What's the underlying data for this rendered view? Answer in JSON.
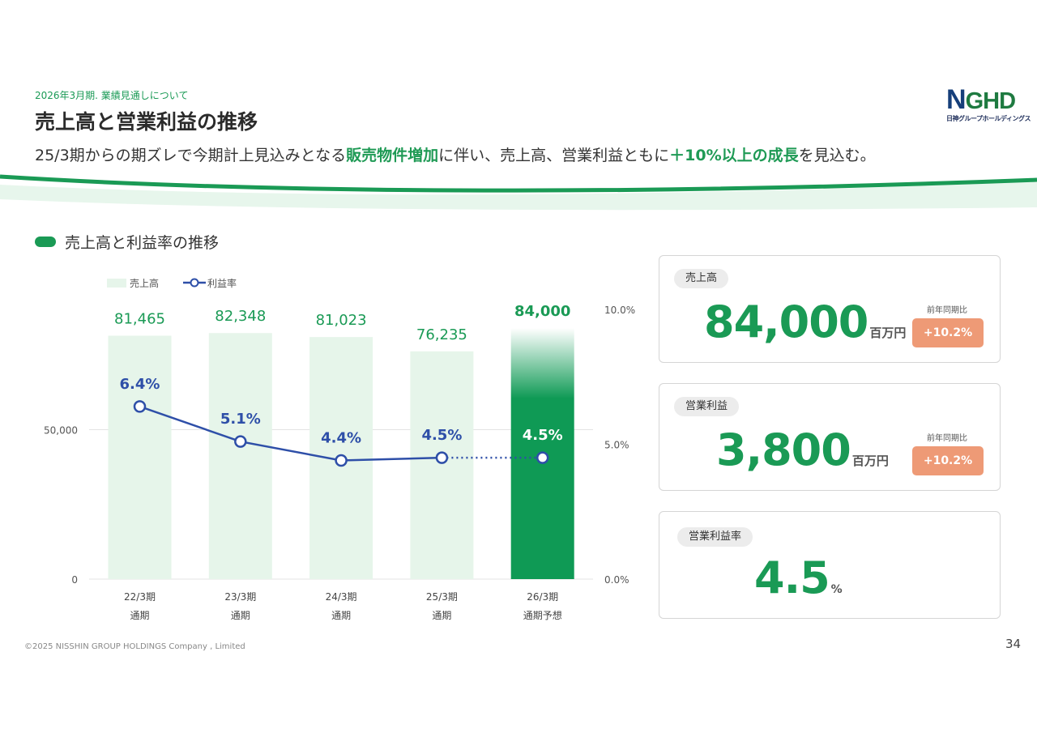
{
  "header": {
    "breadcrumb": "2026年3月期. 業績見通しについて",
    "title": "売上高と営業利益の推移",
    "subtitle_parts": [
      {
        "text": "25/3期からの期ズレで今期計上見込みとなる",
        "highlight": false
      },
      {
        "text": "販売物件増加",
        "highlight": true
      },
      {
        "text": "に伴い、売上高、営業利益ともに",
        "highlight": false
      },
      {
        "text": "＋10%以上の成長",
        "highlight": true
      },
      {
        "text": "を見込む。",
        "highlight": false
      }
    ]
  },
  "logo": {
    "mark_n": "N",
    "mark_rest": "GHD",
    "subtext": "日神グループホールディングス"
  },
  "section": {
    "title": "売上高と利益率の推移"
  },
  "chart_data": {
    "type": "bar",
    "categories": [
      [
        "22/3期",
        "通期"
      ],
      [
        "23/3期",
        "通期"
      ],
      [
        "24/3期",
        "通期"
      ],
      [
        "25/3期",
        "通期"
      ],
      [
        "26/3期",
        "通期予想"
      ]
    ],
    "series": [
      {
        "name": "売上高",
        "type": "bar",
        "axis": "left",
        "values": [
          81465,
          82348,
          81023,
          76235,
          84000
        ],
        "labels": [
          "81,465",
          "82,348",
          "81,023",
          "76,235",
          "84,000"
        ]
      },
      {
        "name": "利益率",
        "type": "line",
        "axis": "right",
        "values": [
          6.4,
          5.1,
          4.4,
          4.5,
          4.5
        ],
        "labels": [
          "6.4%",
          "5.1%",
          "4.4%",
          "4.5%",
          "4.5%"
        ]
      }
    ],
    "left_axis": {
      "ticks": [
        0,
        50000
      ],
      "tick_labels": [
        "0",
        "50,000"
      ],
      "range": [
        0,
        90000
      ]
    },
    "right_axis": {
      "ticks": [
        0,
        5,
        10
      ],
      "tick_labels": [
        "0.0%",
        "5.0%",
        "10.0%"
      ],
      "range": [
        0,
        10
      ]
    },
    "legend": {
      "position": "top-left"
    },
    "forecast_index": 4,
    "colors": {
      "bar": "#e6f5ea",
      "bar_forecast": "#0f9a55",
      "bar_label": "#1a9a55",
      "line": "#2e4fa8",
      "grid": "#e3e3e3"
    }
  },
  "kpi_cards": [
    {
      "label": "売上高",
      "value": "84,000",
      "unit": "百万円",
      "yoy_label": "前年同期比",
      "yoy_value": "+10.2%"
    },
    {
      "label": "営業利益",
      "value": "3,800",
      "unit": "百万円",
      "yoy_label": "前年同期比",
      "yoy_value": "+10.2%"
    },
    {
      "label": "営業利益率",
      "value": "4.5",
      "unit": "%"
    }
  ],
  "footer": {
    "copyright": "©2025 NISSHIN GROUP HOLDINGS Company , Limited",
    "page_number": "34"
  }
}
